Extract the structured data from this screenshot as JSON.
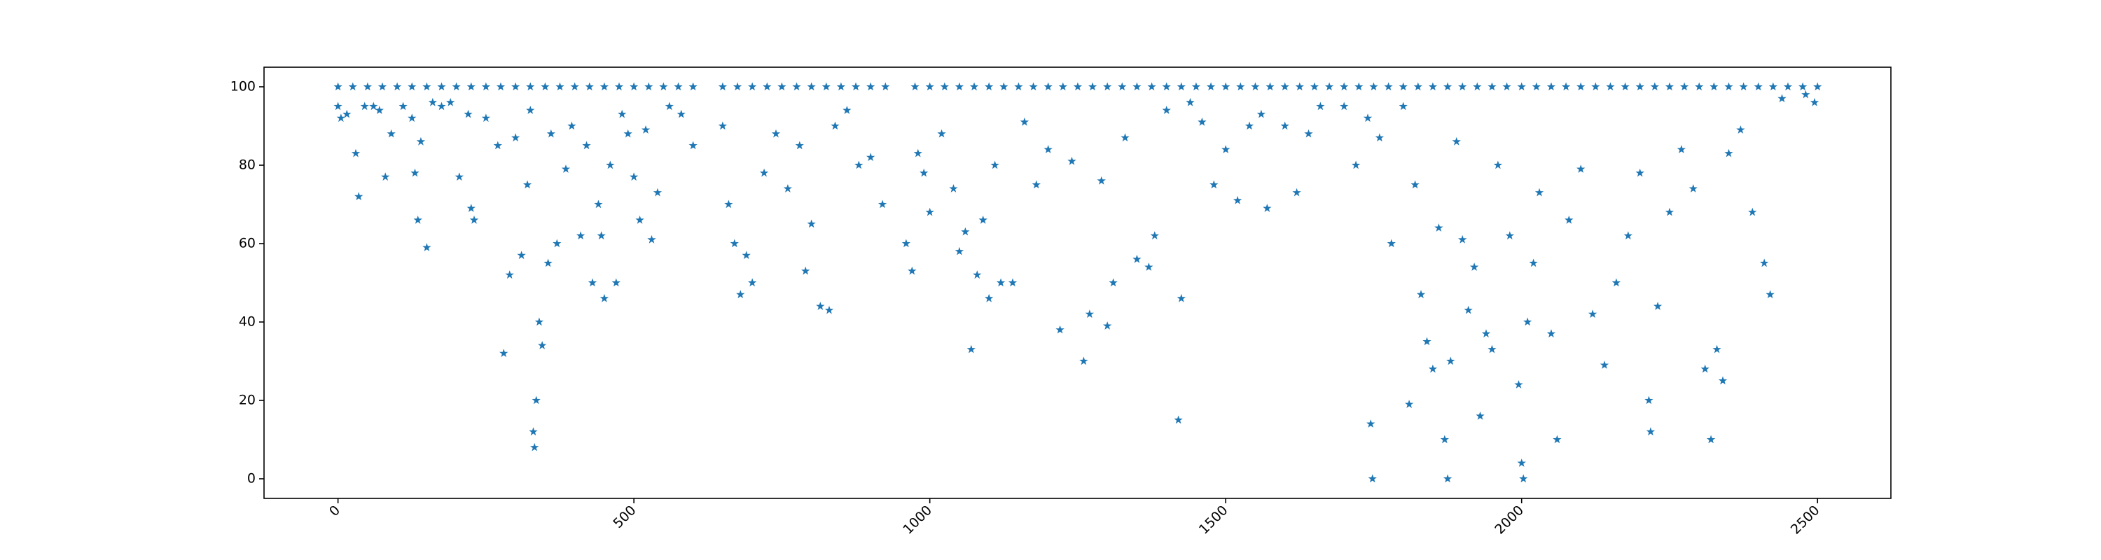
{
  "chart_data": {
    "type": "scatter",
    "color": "#1f77b4",
    "marker": "star",
    "xlim": [
      -125,
      2624
    ],
    "ylim": [
      -5,
      105
    ],
    "xticks": [
      0,
      500,
      1000,
      1500,
      2000,
      2500
    ],
    "yticks": [
      0,
      20,
      40,
      60,
      80,
      100
    ],
    "x": [
      0,
      5,
      15,
      30,
      35,
      45,
      60,
      70,
      80,
      90,
      110,
      125,
      130,
      135,
      140,
      150,
      160,
      175,
      190,
      205,
      220,
      225,
      230,
      250,
      270,
      280,
      290,
      300,
      310,
      320,
      325,
      330,
      332,
      335,
      340,
      345,
      355,
      360,
      370,
      385,
      395,
      410,
      420,
      430,
      440,
      445,
      450,
      460,
      470,
      480,
      490,
      500,
      510,
      520,
      530,
      540,
      560,
      580,
      600,
      650,
      660,
      670,
      680,
      690,
      700,
      720,
      740,
      760,
      780,
      790,
      800,
      815,
      830,
      840,
      860,
      880,
      900,
      920,
      960,
      970,
      980,
      990,
      1000,
      1020,
      1040,
      1050,
      1060,
      1070,
      1080,
      1090,
      1100,
      1110,
      1120,
      1140,
      1160,
      1180,
      1200,
      1220,
      1240,
      1260,
      1270,
      1290,
      1300,
      1310,
      1330,
      1350,
      1370,
      1380,
      1400,
      1420,
      1425,
      1440,
      1460,
      1480,
      1500,
      1520,
      1540,
      1560,
      1570,
      1600,
      1620,
      1640,
      1660,
      1700,
      1720,
      1740,
      1745,
      1748,
      1760,
      1780,
      1800,
      1810,
      1820,
      1830,
      1840,
      1850,
      1860,
      1870,
      1875,
      1880,
      1890,
      1900,
      1910,
      1920,
      1930,
      1940,
      1950,
      1960,
      1980,
      1995,
      2000,
      2003,
      2010,
      2020,
      2030,
      2050,
      2060,
      2080,
      2100,
      2120,
      2140,
      2160,
      2180,
      2200,
      2215,
      2218,
      2230,
      2250,
      2270,
      2290,
      2310,
      2320,
      2330,
      2340,
      2350,
      2370,
      2390,
      2410,
      2420,
      2440,
      2480,
      2495,
      0,
      25,
      50,
      75,
      100,
      125,
      150,
      175,
      200,
      225,
      250,
      275,
      300,
      325,
      350,
      375,
      400,
      425,
      450,
      475,
      500,
      525,
      550,
      575,
      600,
      650,
      675,
      700,
      725,
      750,
      775,
      800,
      825,
      850,
      875,
      900,
      925,
      975,
      1000,
      1025,
      1050,
      1075,
      1100,
      1125,
      1150,
      1175,
      1200,
      1225,
      1250,
      1275,
      1300,
      1325,
      1350,
      1375,
      1400,
      1425,
      1450,
      1475,
      1500,
      1525,
      1550,
      1575,
      1600,
      1625,
      1650,
      1675,
      1700,
      1725,
      1750,
      1775,
      1800,
      1825,
      1850,
      1875,
      1900,
      1925,
      1950,
      1975,
      2000,
      2025,
      2050,
      2075,
      2100,
      2125,
      2150,
      2175,
      2200,
      2225,
      2250,
      2275,
      2300,
      2325,
      2350,
      2375,
      2400,
      2425,
      2450,
      2475,
      2500
    ],
    "values": [
      95,
      92,
      93,
      83,
      72,
      95,
      95,
      94,
      77,
      88,
      95,
      92,
      78,
      66,
      86,
      59,
      96,
      95,
      96,
      77,
      93,
      69,
      66,
      92,
      85,
      32,
      52,
      87,
      57,
      75,
      94,
      12,
      8,
      20,
      40,
      34,
      55,
      88,
      60,
      79,
      90,
      62,
      85,
      50,
      70,
      62,
      46,
      80,
      50,
      93,
      88,
      77,
      66,
      89,
      61,
      73,
      95,
      93,
      85,
      90,
      70,
      60,
      47,
      57,
      50,
      78,
      88,
      74,
      85,
      53,
      65,
      44,
      43,
      90,
      94,
      80,
      82,
      70,
      60,
      53,
      83,
      78,
      68,
      88,
      74,
      58,
      63,
      33,
      52,
      66,
      46,
      80,
      50,
      50,
      91,
      75,
      84,
      38,
      81,
      30,
      42,
      76,
      39,
      50,
      87,
      56,
      54,
      62,
      94,
      15,
      46,
      96,
      91,
      75,
      84,
      71,
      90,
      93,
      69,
      90,
      73,
      88,
      95,
      95,
      80,
      92,
      14,
      0,
      87,
      60,
      95,
      19,
      75,
      47,
      35,
      28,
      64,
      10,
      0,
      30,
      86,
      61,
      43,
      54,
      16,
      37,
      33,
      80,
      62,
      24,
      4,
      0,
      40,
      55,
      73,
      37,
      10,
      66,
      79,
      42,
      29,
      50,
      62,
      78,
      20,
      12,
      44,
      68,
      84,
      74,
      28,
      10,
      33,
      25,
      83,
      89,
      68,
      55,
      47,
      97,
      98,
      96,
      100,
      100,
      100,
      100,
      100,
      100,
      100,
      100,
      100,
      100,
      100,
      100,
      100,
      100,
      100,
      100,
      100,
      100,
      100,
      100,
      100,
      100,
      100,
      100,
      100,
      100,
      100,
      100,
      100,
      100,
      100,
      100,
      100,
      100,
      100,
      100,
      100,
      100,
      100,
      100,
      100,
      100,
      100,
      100,
      100,
      100,
      100,
      100,
      100,
      100,
      100,
      100,
      100,
      100,
      100,
      100,
      100,
      100,
      100,
      100,
      100,
      100,
      100,
      100,
      100,
      100,
      100,
      100,
      100,
      100,
      100,
      100,
      100,
      100,
      100,
      100,
      100,
      100,
      100,
      100,
      100,
      100,
      100,
      100,
      100,
      100,
      100,
      100,
      100,
      100,
      100,
      100,
      100,
      100,
      100,
      100,
      100,
      100,
      100
    ]
  }
}
